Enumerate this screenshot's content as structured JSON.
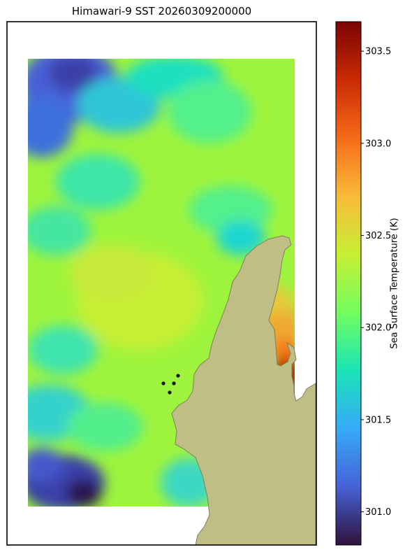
{
  "chart_data": {
    "type": "heatmap",
    "title": "Himawari-9 SST 20260309200000",
    "colorbar": {
      "label": "Sea Surface Temperature (K)",
      "range": [
        300.82,
        303.66
      ],
      "ticks": [
        301.0,
        301.5,
        302.0,
        302.5,
        303.0,
        303.5
      ],
      "tick_labels": [
        "301.0",
        "301.5",
        "302.0",
        "302.5",
        "303.0",
        "303.5"
      ],
      "colormap": "turbo",
      "colors": [
        "#30123b",
        "#4662d7",
        "#36aaf9",
        "#1ae4b6",
        "#72fe5e",
        "#c7ef34",
        "#faba39",
        "#f66b19",
        "#ca2a04",
        "#7a0403"
      ]
    },
    "land_color": "#bfbf85",
    "land_edge_color": "#7f7f5c",
    "point_color": "#111111",
    "points": [
      "point-1",
      "point-2",
      "point-3",
      "point-4"
    ]
  }
}
